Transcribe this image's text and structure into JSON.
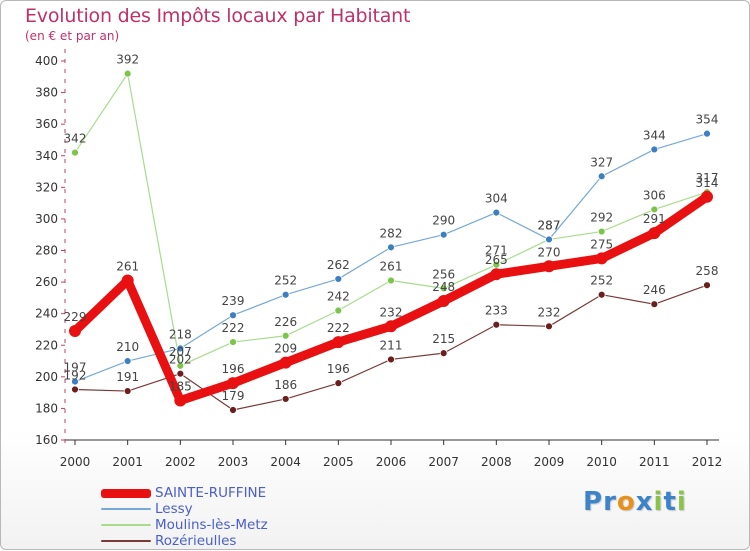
{
  "title": "Evolution des Impôts locaux par Habitant",
  "subtitle": "(en € et par an)",
  "logo": {
    "letters": [
      {
        "char": "P",
        "color": "#3d83c9"
      },
      {
        "char": "r",
        "color": "#3d83c9"
      },
      {
        "char": "o",
        "color": "#e8901e"
      },
      {
        "char": "x",
        "color": "#3d83c9"
      },
      {
        "char": "i",
        "color": "#8bc34a"
      },
      {
        "char": "t",
        "color": "#3d83c9"
      },
      {
        "char": "i",
        "color": "#8bc34a"
      }
    ]
  },
  "chart_data": {
    "type": "line",
    "x": [
      2000,
      2001,
      2002,
      2003,
      2004,
      2005,
      2006,
      2007,
      2008,
      2009,
      2010,
      2011,
      2012
    ],
    "ylim": [
      160,
      400
    ],
    "yticks": [
      160,
      180,
      200,
      220,
      240,
      260,
      280,
      300,
      320,
      340,
      360,
      380,
      400
    ],
    "grid": false,
    "legend_position": "bottom-left",
    "series": [
      {
        "name": "SAINTE-RUFFINE",
        "color": "#e81010",
        "line_width": 9,
        "marker_r": 6,
        "values": [
          229,
          261,
          185,
          196,
          209,
          222,
          232,
          248,
          265,
          270,
          275,
          291,
          314
        ]
      },
      {
        "name": "Lessy",
        "color": "#78a8d8",
        "marker": "#3d7fc1",
        "line_width": 1.2,
        "marker_r": 3.5,
        "values": [
          197,
          210,
          218,
          239,
          252,
          262,
          282,
          290,
          304,
          287,
          327,
          344,
          354
        ]
      },
      {
        "name": "Moulins-lès-Metz",
        "color": "#a8dc8c",
        "marker": "#7cc44a",
        "line_width": 1.2,
        "marker_r": 3.5,
        "values": [
          342,
          392,
          207,
          222,
          226,
          242,
          261,
          256,
          271,
          287,
          292,
          306,
          317
        ]
      },
      {
        "name": "Rozérieulles",
        "color": "#7a3a3a",
        "marker": "#6a1e1e",
        "line_width": 1.2,
        "marker_r": 3.5,
        "values": [
          192,
          191,
          202,
          179,
          186,
          196,
          211,
          215,
          233,
          232,
          252,
          246,
          258
        ]
      }
    ]
  }
}
